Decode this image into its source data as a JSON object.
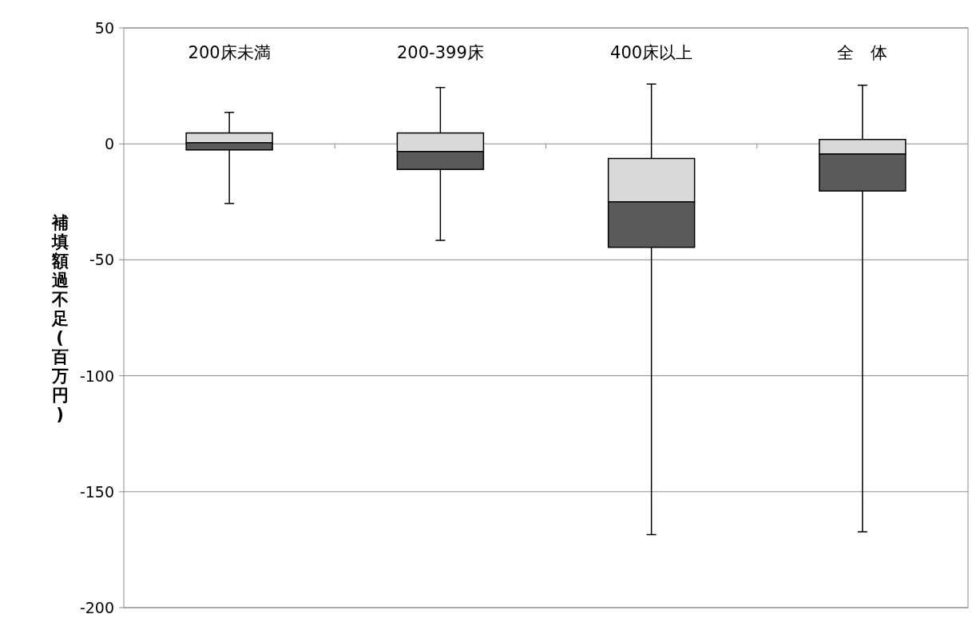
{
  "chart_data": {
    "type": "box",
    "categories": [
      "200床未満",
      "200-399床",
      "400床以上",
      "全　体"
    ],
    "boxes": [
      {
        "low": -25.7,
        "q1": -2.6,
        "median": 0.5,
        "q3": 4.7,
        "high": 13.6
      },
      {
        "low": -41.6,
        "q1": -11,
        "median": -3.3,
        "q3": 4.7,
        "high": 24.3
      },
      {
        "low": -168.5,
        "q1": -44.6,
        "median": -25,
        "q3": -6.3,
        "high": 25.8
      },
      {
        "low": -167.3,
        "q1": -20.3,
        "median": -4.4,
        "q3": 1.9,
        "high": 25.3
      }
    ],
    "ylabel": "補填額過不足(百万円)",
    "ylim": [
      -200,
      50
    ],
    "yticks": [
      -200,
      -150,
      -100,
      -50,
      0,
      50
    ],
    "grid": "y"
  }
}
